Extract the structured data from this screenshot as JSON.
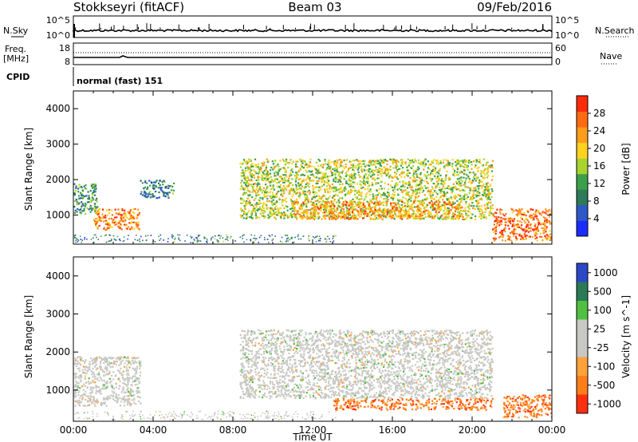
{
  "header": {
    "station": "Stokkseyri (fitACF)",
    "beam": "Beam 03",
    "date": "09/Feb/2016"
  },
  "strip1": {
    "left_label": "N.Sky",
    "left_top_tick": "10^5",
    "left_bottom_tick": "10^0",
    "right_label": "N.Search",
    "right_top_tick": "10^5",
    "right_bottom_tick": "10^0"
  },
  "strip2": {
    "left_label_line1": "Freq.",
    "left_label_line2": "[MHz]",
    "left_top_tick": "18",
    "left_bottom_tick": "8",
    "right_label": "Nave",
    "right_top_tick": "60",
    "right_bottom_tick": "0"
  },
  "strip3": {
    "left_label": "CPID",
    "mode_text": "normal (fast) 151"
  },
  "colors": {
    "power_scale": [
      "#1a2cff",
      "#2f57c8",
      "#2d7a5a",
      "#3aa04a",
      "#a8d430",
      "#ffd21f",
      "#ff9c1a",
      "#ff6a12",
      "#ff2a0a"
    ],
    "velocity_scale": [
      "#2a48c8",
      "#2a7a55",
      "#50c040",
      "#c8c8c4",
      "#c8c8c4",
      "#ffa23c",
      "#ff7e1a",
      "#ff3010"
    ]
  },
  "chart_data": [
    {
      "type": "heatmap",
      "parameter": "Power",
      "ylabel": "Slant Range [km]",
      "ylim": [
        180,
        4500
      ],
      "yticks": [
        "1000",
        "2000",
        "3000",
        "4000"
      ],
      "xlim": [
        "00:00",
        "24:00"
      ],
      "colorbar_label": "Power [dB]",
      "colorbar_ticks": [
        "4",
        "8",
        "12",
        "16",
        "20",
        "24",
        "28"
      ],
      "colorbar_range": [
        0,
        32
      ],
      "echo_regions": [
        {
          "time_start": "00:00",
          "time_end": "01:10",
          "range_km": [
            1050,
            1900
          ],
          "power_db": 10
        },
        {
          "time_start": "01:00",
          "time_end": "03:20",
          "range_km": [
            600,
            1200
          ],
          "power_db": 26
        },
        {
          "time_start": "03:20",
          "time_end": "05:00",
          "range_km": [
            1500,
            2000
          ],
          "power_db": 8
        },
        {
          "time_start": "08:20",
          "time_end": "21:00",
          "range_km": [
            900,
            2600
          ],
          "power_db": 17
        },
        {
          "time_start": "11:00",
          "time_end": "19:30",
          "range_km": [
            900,
            1400
          ],
          "power_db": 24
        },
        {
          "time_start": "21:00",
          "time_end": "24:00",
          "range_km": [
            300,
            1200
          ],
          "power_db": 28
        }
      ]
    },
    {
      "type": "heatmap",
      "parameter": "Velocity",
      "ylabel": "Slant Range [km]",
      "ylim": [
        180,
        4500
      ],
      "yticks": [
        "1000",
        "2000",
        "3000",
        "4000"
      ],
      "xlim": [
        "00:00",
        "24:00"
      ],
      "xticks": [
        "00:00",
        "04:00",
        "08:00",
        "12:00",
        "16:00",
        "20:00",
        "00:00"
      ],
      "xlabel": "Time UT",
      "colorbar_label": "Velocity [m s^-1]",
      "colorbar_ticks": [
        "1000",
        "500",
        "100",
        "25",
        "-25",
        "-100",
        "-500",
        "-1000"
      ],
      "echo_regions": [
        {
          "time_start": "00:00",
          "time_end": "03:20",
          "range_km": [
            600,
            1900
          ],
          "velocity_ms": 0
        },
        {
          "time_start": "08:20",
          "time_end": "21:00",
          "range_km": [
            800,
            2600
          ],
          "velocity_ms": 0
        },
        {
          "time_start": "13:00",
          "time_end": "21:00",
          "range_km": [
            500,
            800
          ],
          "velocity_ms": -300
        },
        {
          "time_start": "21:30",
          "time_end": "24:00",
          "range_km": [
            300,
            900
          ],
          "velocity_ms": -400
        }
      ]
    }
  ]
}
